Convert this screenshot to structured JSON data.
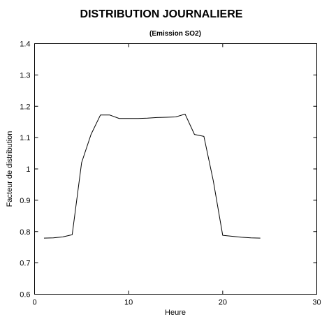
{
  "chart_data": {
    "type": "line",
    "title": "DISTRIBUTION JOURNALIERE",
    "subtitle": "(Emission SO2)",
    "xlabel": "Heure",
    "ylabel": "Facteur de distribution",
    "xlim": [
      0,
      30
    ],
    "ylim": [
      0.6,
      1.4
    ],
    "x_ticks": [
      0,
      10,
      20,
      30
    ],
    "x_tick_labels": [
      "0",
      "10",
      "20",
      "30"
    ],
    "y_ticks": [
      0.6,
      0.7,
      0.8,
      0.9,
      1.0,
      1.1,
      1.2,
      1.3,
      1.4
    ],
    "y_tick_labels": [
      "0.6",
      "0.7",
      "0.8",
      "0.9",
      "1",
      "1.1",
      "1.2",
      "1.3",
      "1.4"
    ],
    "grid": false,
    "series": [
      {
        "x": [
          1,
          2,
          3,
          4,
          5,
          6,
          7,
          8,
          9,
          10,
          11,
          12,
          13,
          14,
          15,
          16,
          17,
          18,
          19,
          20,
          21,
          22,
          23,
          24
        ],
        "y": [
          0.779,
          0.78,
          0.783,
          0.79,
          1.02,
          1.11,
          1.172,
          1.172,
          1.161,
          1.161,
          1.161,
          1.162,
          1.164,
          1.165,
          1.166,
          1.175,
          1.11,
          1.104,
          0.962,
          0.788,
          0.785,
          0.782,
          0.78,
          0.779
        ]
      }
    ]
  }
}
